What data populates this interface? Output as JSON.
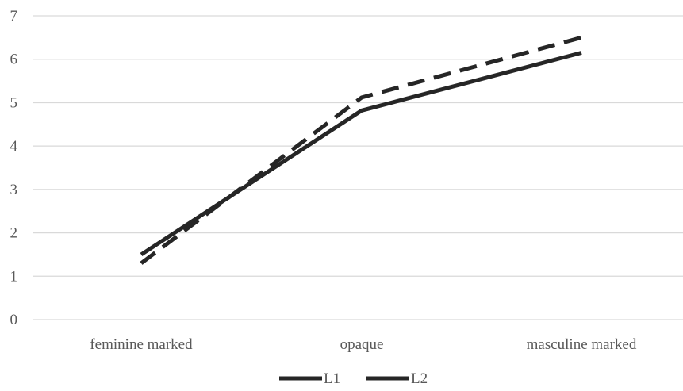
{
  "chart_data": {
    "type": "line",
    "categories": [
      "feminine marked",
      "opaque",
      "masculine marked"
    ],
    "series": [
      {
        "name": "L1",
        "values": [
          1.5,
          4.82,
          6.15
        ],
        "color": "#262626",
        "dash": "solid"
      },
      {
        "name": "L2",
        "values": [
          1.3,
          5.12,
          6.5
        ],
        "color": "#262626",
        "dash": "dashed"
      }
    ],
    "y_ticks": [
      "0",
      "1",
      "2",
      "3",
      "4",
      "5",
      "6",
      "7"
    ],
    "ylim": [
      0,
      7
    ],
    "grid": true,
    "legend_position": "bottom"
  }
}
